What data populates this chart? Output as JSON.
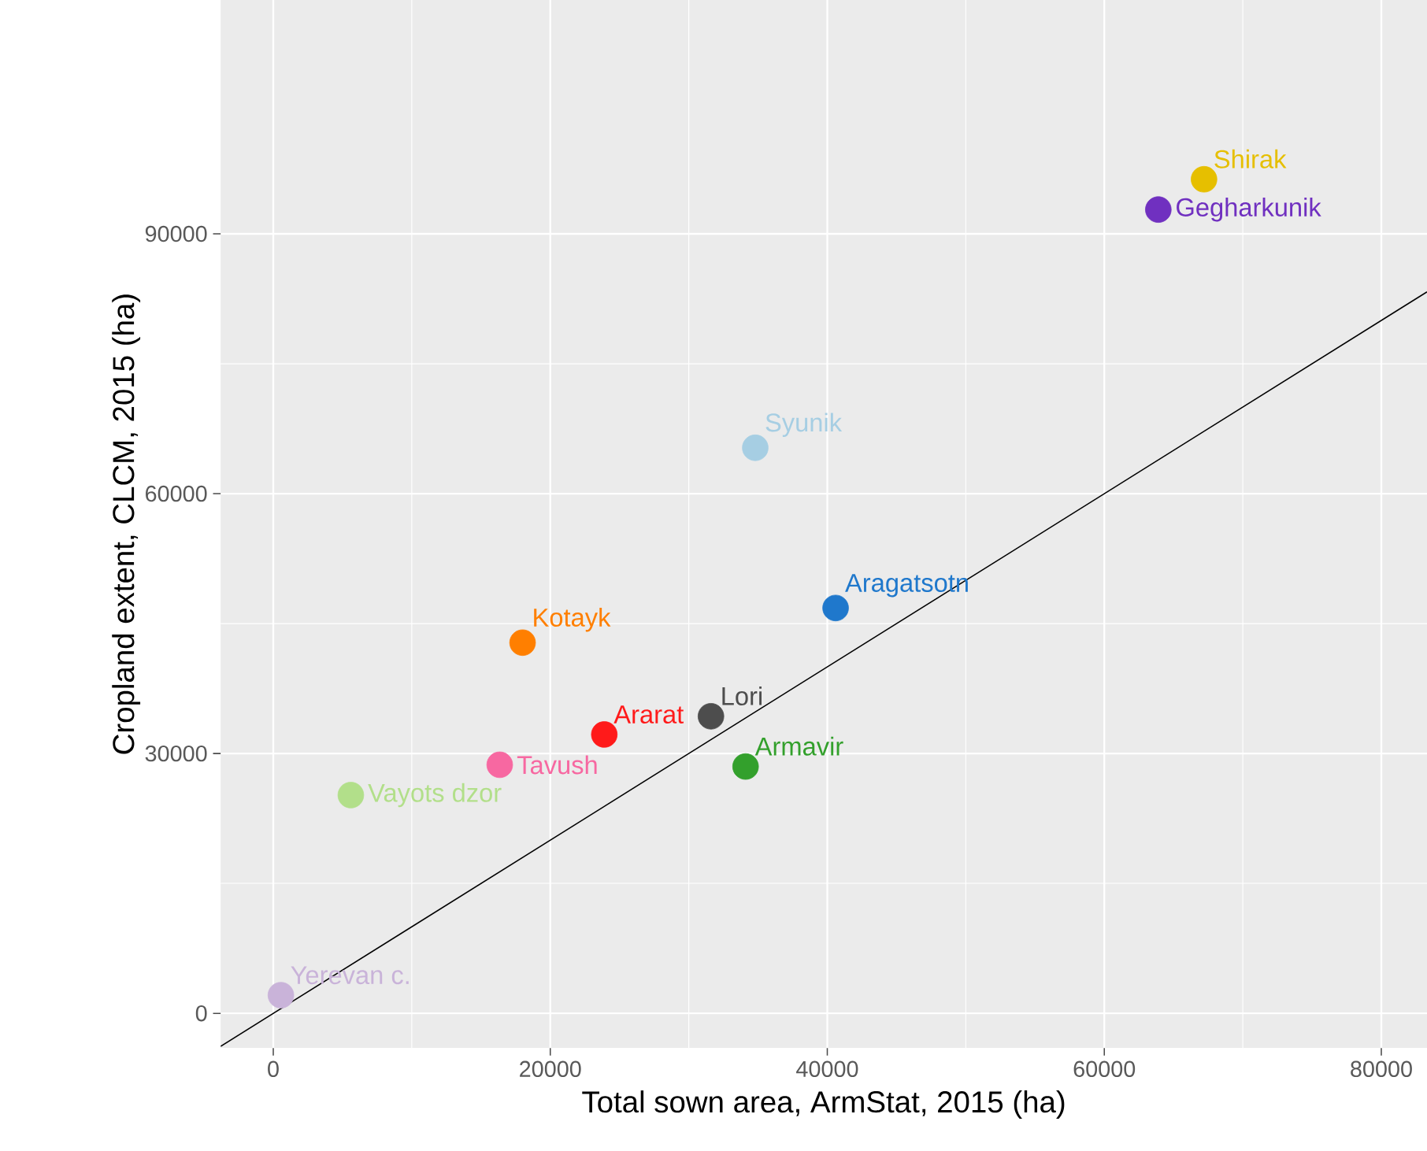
{
  "chart_data": {
    "type": "scatter",
    "xlabel": "Total sown area, ArmStat, 2015 (ha)",
    "ylabel": "Cropland extent, CLCM, 2015 (ha)",
    "xlim": [
      -3800,
      83300
    ],
    "ylim": [
      -4000,
      117000
    ],
    "xticks": [
      0,
      20000,
      40000,
      60000,
      80000
    ],
    "yticks": [
      0,
      30000,
      60000,
      90000
    ],
    "grid": true,
    "marker": "circle",
    "series": [
      {
        "name": "Yerevan c.",
        "color": "#c9b3d9",
        "x": [
          550
        ],
        "values": [
          2100
        ]
      },
      {
        "name": "Vayots dzor",
        "color": "#b2df8a",
        "x": [
          5600
        ],
        "values": [
          25200
        ]
      },
      {
        "name": "Tavush",
        "color": "#f768a1",
        "x": [
          16350
        ],
        "values": [
          28700
        ]
      },
      {
        "name": "Kotayk",
        "color": "#ff7f00",
        "x": [
          18000
        ],
        "values": [
          42800
        ]
      },
      {
        "name": "Ararat",
        "color": "#ff1a1a",
        "x": [
          23900
        ],
        "values": [
          32200
        ]
      },
      {
        "name": "Lori",
        "color": "#4d4d4d",
        "x": [
          31600
        ],
        "values": [
          34300
        ]
      },
      {
        "name": "Armavir",
        "color": "#33a02c",
        "x": [
          34100
        ],
        "values": [
          28500
        ]
      },
      {
        "name": "Syunik",
        "color": "#a6cee3",
        "x": [
          34800
        ],
        "values": [
          65300
        ]
      },
      {
        "name": "Aragatsotn",
        "color": "#1f78cc",
        "x": [
          40600
        ],
        "values": [
          46800
        ]
      },
      {
        "name": "Gegharkunik",
        "color": "#7030c0",
        "x": [
          63900
        ],
        "values": [
          92800
        ]
      },
      {
        "name": "Shirak",
        "color": "#e6bf00",
        "x": [
          67200
        ],
        "values": [
          96300
        ]
      },
      {
        "type": "line",
        "color": "#000000",
        "line_style": "solid",
        "marker": "none",
        "x": [
          -3800,
          83300
        ],
        "values": [
          -3800,
          83300
        ]
      }
    ]
  }
}
